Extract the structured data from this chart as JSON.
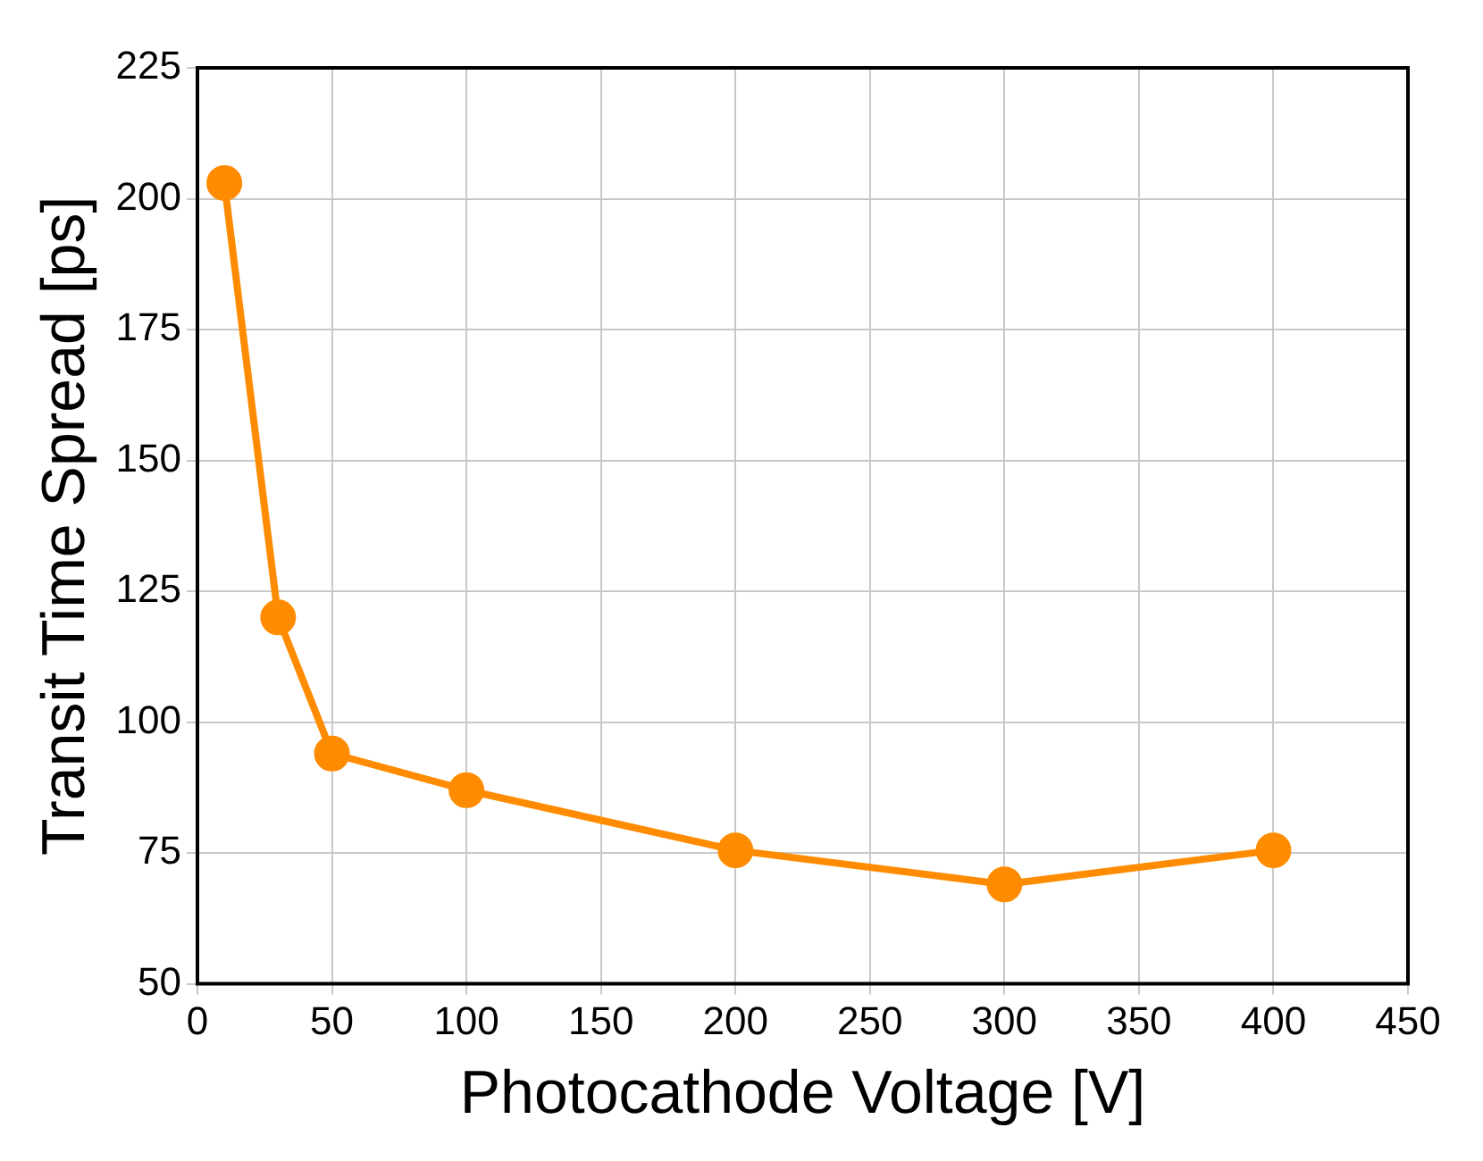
{
  "chart_data": {
    "type": "line",
    "xlabel": "Photocathode Voltage [V]",
    "ylabel": "Transit Time Spread [ps]",
    "x": [
      10,
      30,
      50,
      100,
      200,
      300,
      400
    ],
    "series": [
      {
        "color": "#ff8c00",
        "values": [
          203,
          120,
          94,
          87,
          75.5,
          69,
          75.5
        ]
      }
    ],
    "xlim": [
      0,
      450
    ],
    "xticks": [
      0,
      50,
      100,
      150,
      200,
      250,
      300,
      350,
      400,
      450
    ],
    "ylim": [
      50,
      225
    ],
    "yticks": [
      50,
      75,
      100,
      125,
      150,
      175,
      200,
      225
    ],
    "grid": true,
    "legend": false,
    "marker": "circle",
    "line_style": "solid"
  }
}
